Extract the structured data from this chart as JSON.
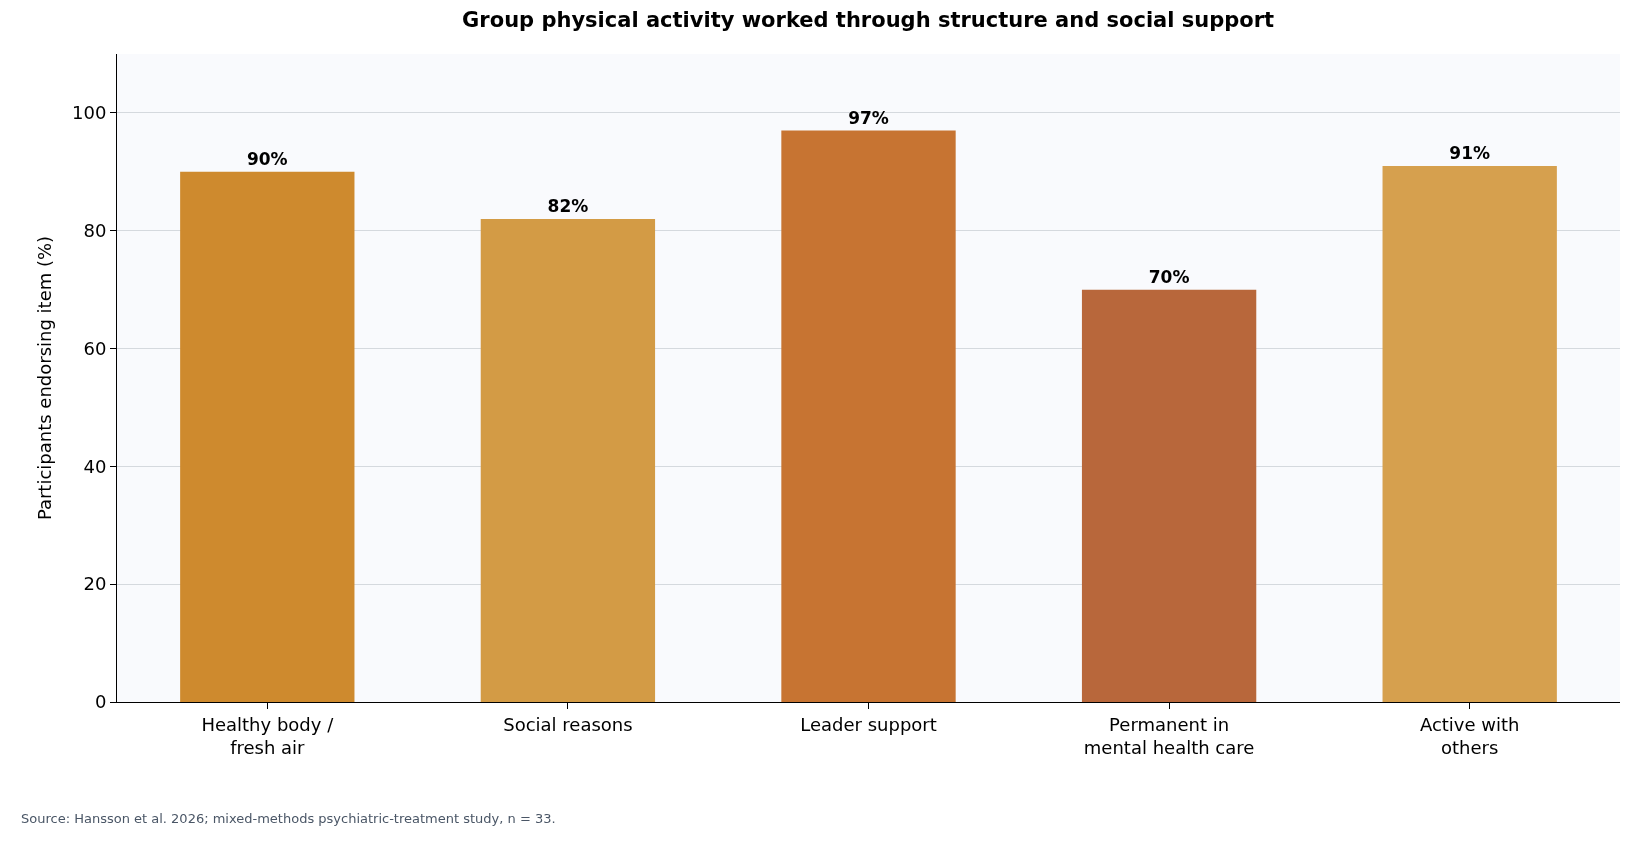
{
  "chart_data": {
    "type": "bar",
    "title": "Group physical activity worked through structure and social support",
    "ylabel": "Participants endorsing item (%)",
    "categories": [
      "Healthy body /\nfresh air",
      "Social reasons",
      "Leader support",
      "Permanent in\nmental health care",
      "Active with\nothers"
    ],
    "values": [
      90,
      82,
      97,
      70,
      91
    ],
    "value_labels": [
      "90%",
      "82%",
      "97%",
      "70%",
      "91%"
    ],
    "colors": [
      "#ce8a2e",
      "#d39b45",
      "#c77432",
      "#b8673b",
      "#d6a04e"
    ],
    "ylim": [
      0,
      110
    ],
    "yticks": [
      0,
      20,
      40,
      60,
      80,
      100
    ],
    "grid": "y",
    "annotations": [
      "Source: Hansson et al. 2026; mixed-methods psychiatric-treatment study, n = 33."
    ]
  }
}
